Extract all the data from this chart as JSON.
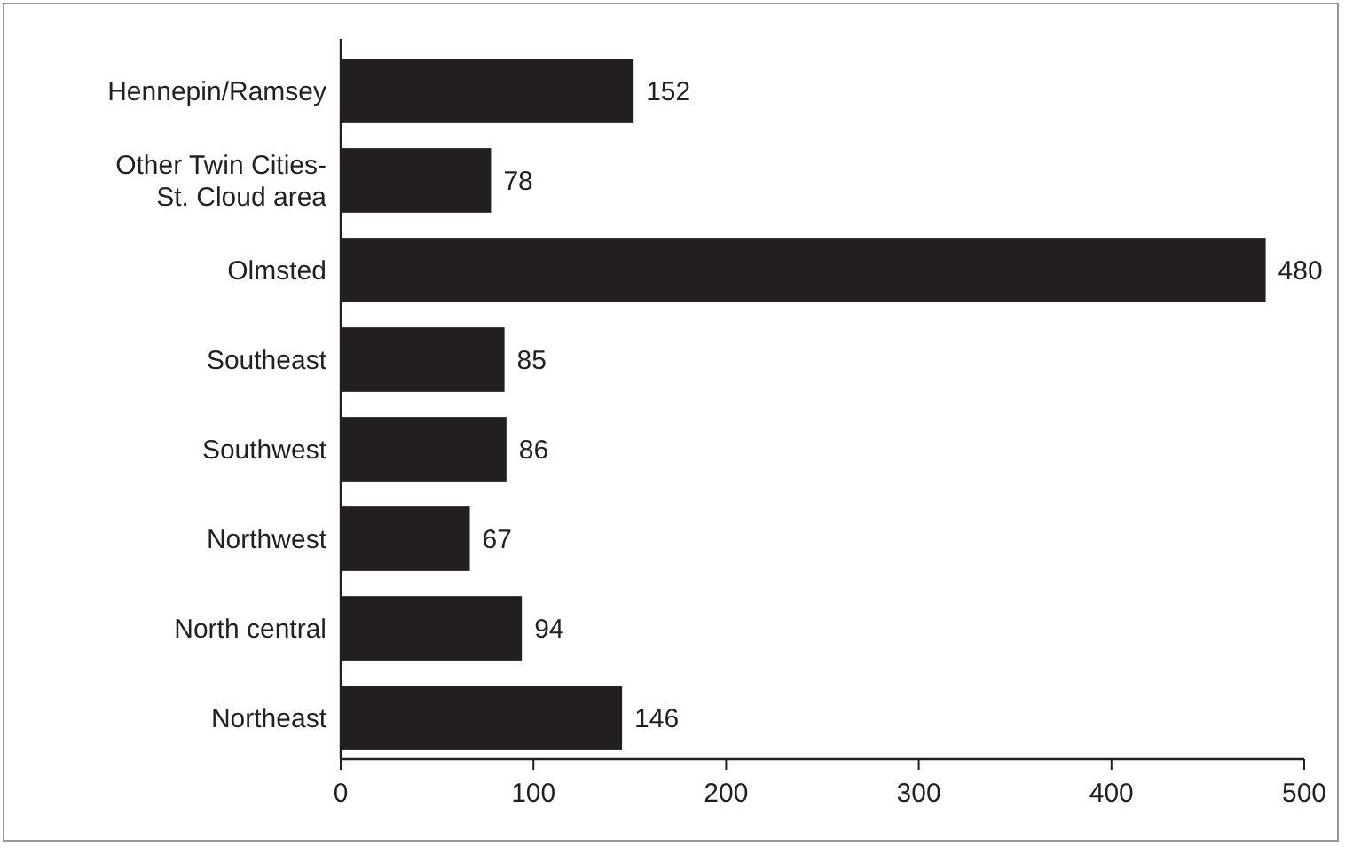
{
  "chart_data": {
    "type": "bar",
    "orientation": "horizontal",
    "categories": [
      "Hennepin/Ramsey",
      "Other Twin Cities-\nSt. Cloud area",
      "Olmsted",
      "Southeast",
      "Southwest",
      "Northwest",
      "North central",
      "Northeast"
    ],
    "values": [
      152,
      78,
      480,
      85,
      86,
      67,
      94,
      146
    ],
    "color": "#231f20",
    "xlim": [
      0,
      500
    ],
    "xticks": [
      0,
      100,
      200,
      300,
      400,
      500
    ],
    "data_labels": true
  }
}
